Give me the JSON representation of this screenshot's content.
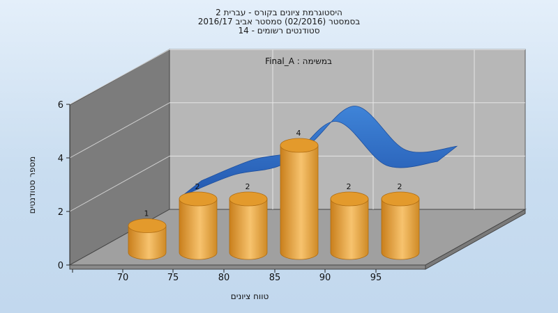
{
  "chart_data": {
    "type": "bar",
    "title_lines": [
      "היסטוגרמת ציונים בקורס - עברית 2",
      "בסמסטר  (02/2016)  סמסטר אביב 2016/17",
      "סטודנטים רשומים - 14"
    ],
    "subtitle": "במשימה : Final_A",
    "xlabel": "טווח ציונים",
    "ylabel": "מספר סטודנטים",
    "categories": [
      "70",
      "75",
      "80",
      "85",
      "90",
      "95"
    ],
    "values": [
      1,
      2,
      2,
      4,
      2,
      2
    ],
    "curve_values": [
      1.5,
      2.6,
      3.2,
      5.4,
      3.1,
      3.3
    ],
    "ylim": [
      0,
      6
    ],
    "yticks": [
      0,
      2,
      4,
      6
    ],
    "colors": {
      "bar": "#e9a33c",
      "curve": "#2f6fc6"
    }
  }
}
